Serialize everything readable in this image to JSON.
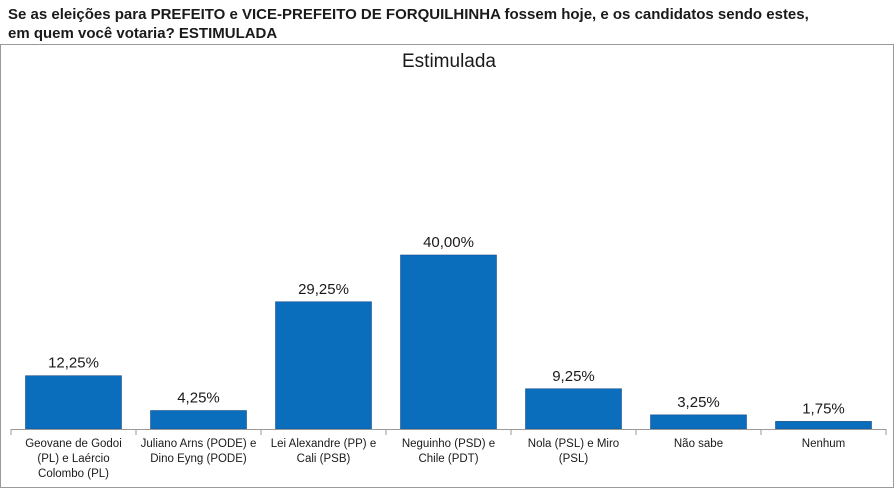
{
  "question": {
    "line1": "Se as eleições para PREFEITO e VICE-PREFEITO DE FORQUILHINHA fossem hoje, e os candidatos sendo estes,",
    "line2": "em quem você votaria? ESTIMULADA"
  },
  "chart_data": {
    "type": "bar",
    "title": "Estimulada",
    "categories": [
      "Geovane de Godoi (PL) e Laércio Colombo (PL)",
      "Juliano Arns (PODE) e Dino Eyng (PODE)",
      "Lei Alexandre (PP) e Cali (PSB)",
      "Neguinho (PSD) e Chile (PDT)",
      "Nola (PSL) e Miro (PSL)",
      "Não sabe",
      "Nenhum"
    ],
    "category_lines": [
      [
        "Geovane de Godoi",
        "(PL) e Laércio",
        "Colombo (PL)"
      ],
      [
        "Juliano Arns (PODE) e",
        "Dino Eyng (PODE)"
      ],
      [
        "Lei Alexandre (PP) e",
        "Cali (PSB)"
      ],
      [
        "Neguinho (PSD) e",
        "Chile (PDT)"
      ],
      [
        "Nola (PSL) e Miro",
        "(PSL)"
      ],
      [
        "Não sabe"
      ],
      [
        "Nenhum"
      ]
    ],
    "values": [
      12.25,
      4.25,
      29.25,
      40.0,
      9.25,
      3.25,
      1.75
    ],
    "data_labels": [
      "12,25%",
      "4,25%",
      "29,25%",
      "40,00%",
      "9,25%",
      "3,25%",
      "1,75%"
    ],
    "ylim": [
      0,
      40
    ],
    "grid": false,
    "legend": "none",
    "bar_color": "#0a6ebd"
  }
}
